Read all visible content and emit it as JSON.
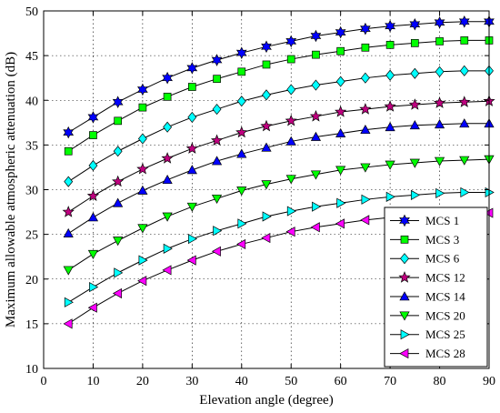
{
  "chart_data": {
    "type": "line",
    "title": "",
    "xlabel": "Elevation angle (degree)",
    "ylabel": "Maximum allowable atmospheric attenuation (dB)",
    "xlim": [
      0,
      90
    ],
    "ylim": [
      10,
      50
    ],
    "xticks": [
      "0",
      "10",
      "20",
      "30",
      "40",
      "50",
      "60",
      "70",
      "80",
      "90"
    ],
    "yticks": [
      "10",
      "15",
      "20",
      "25",
      "30",
      "35",
      "40",
      "45",
      "50"
    ],
    "grid": true,
    "legend_position": "bottom-right",
    "x": [
      5,
      10,
      15,
      20,
      25,
      30,
      35,
      40,
      45,
      50,
      55,
      60,
      65,
      70,
      75,
      80,
      85,
      90
    ],
    "series": [
      {
        "name": "MCS 1",
        "marker": "hexagram",
        "color": "#0000ff",
        "values": [
          36.4,
          38.1,
          39.8,
          41.2,
          42.5,
          43.6,
          44.5,
          45.3,
          46.0,
          46.6,
          47.2,
          47.6,
          48.0,
          48.3,
          48.5,
          48.7,
          48.8,
          48.8
        ]
      },
      {
        "name": "MCS 3",
        "marker": "square",
        "color": "#00ff00",
        "values": [
          34.3,
          36.1,
          37.7,
          39.2,
          40.4,
          41.5,
          42.4,
          43.2,
          44.0,
          44.6,
          45.1,
          45.5,
          45.9,
          46.2,
          46.4,
          46.6,
          46.7,
          46.7
        ]
      },
      {
        "name": "MCS 6",
        "marker": "diamond",
        "color": "#00ffff",
        "values": [
          30.9,
          32.7,
          34.3,
          35.7,
          37.0,
          38.1,
          39.0,
          39.9,
          40.6,
          41.2,
          41.7,
          42.1,
          42.5,
          42.8,
          43.0,
          43.2,
          43.3,
          43.3
        ]
      },
      {
        "name": "MCS 12",
        "marker": "pentagram",
        "color": "#c00080",
        "values": [
          27.5,
          29.3,
          30.9,
          32.3,
          33.5,
          34.6,
          35.5,
          36.4,
          37.1,
          37.7,
          38.2,
          38.7,
          39.0,
          39.3,
          39.5,
          39.7,
          39.8,
          39.9
        ]
      },
      {
        "name": "MCS 14",
        "marker": "triangle-up",
        "color": "#0000ff",
        "values": [
          25.1,
          26.9,
          28.5,
          29.9,
          31.1,
          32.2,
          33.2,
          34.0,
          34.7,
          35.4,
          35.9,
          36.3,
          36.7,
          37.0,
          37.2,
          37.3,
          37.4,
          37.4
        ]
      },
      {
        "name": "MCS 20",
        "marker": "triangle-down",
        "color": "#00ff00",
        "values": [
          21.0,
          22.8,
          24.3,
          25.7,
          27.0,
          28.1,
          29.0,
          29.9,
          30.6,
          31.2,
          31.7,
          32.2,
          32.5,
          32.8,
          33.0,
          33.2,
          33.3,
          33.4
        ]
      },
      {
        "name": "MCS 25",
        "marker": "triangle-right",
        "color": "#00ffff",
        "values": [
          17.4,
          19.1,
          20.7,
          22.1,
          23.4,
          24.5,
          25.4,
          26.2,
          27.0,
          27.6,
          28.1,
          28.5,
          28.9,
          29.2,
          29.4,
          29.6,
          29.7,
          29.7
        ]
      },
      {
        "name": "MCS 28",
        "marker": "triangle-left",
        "color": "#ff00ff",
        "values": [
          15.0,
          16.8,
          18.4,
          19.8,
          21.0,
          22.1,
          23.1,
          23.9,
          24.6,
          25.3,
          25.8,
          26.2,
          26.6,
          26.9,
          27.1,
          27.3,
          27.3,
          27.4
        ]
      }
    ]
  }
}
